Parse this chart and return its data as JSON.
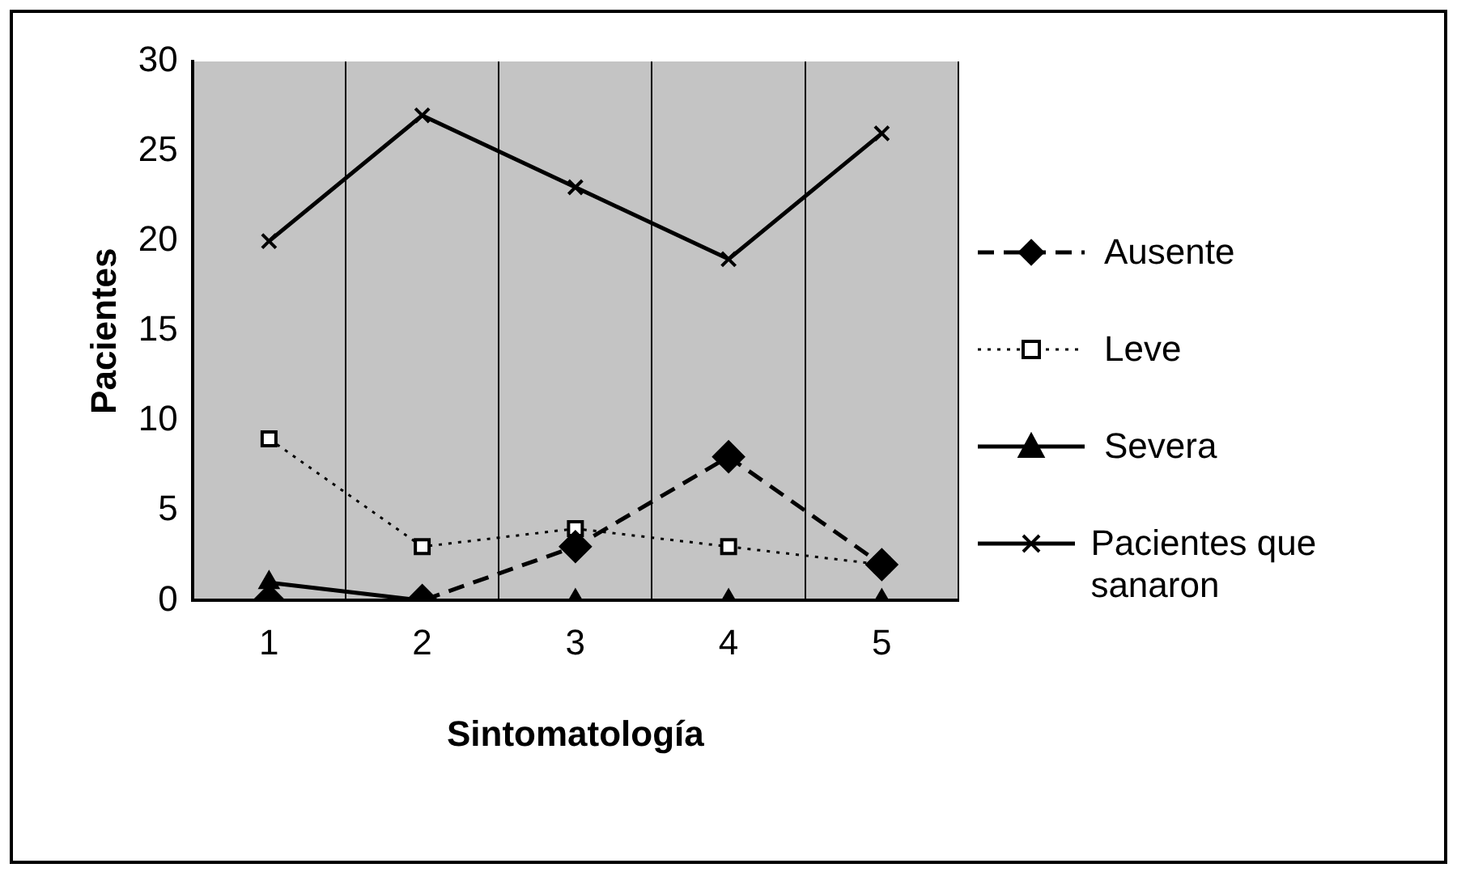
{
  "chart_data": {
    "type": "line",
    "xlabel": "Sintomatología",
    "ylabel": "Pacientes",
    "categories": [
      "1",
      "2",
      "3",
      "4",
      "5"
    ],
    "ylim": [
      0,
      30
    ],
    "yticks": [
      0,
      5,
      10,
      15,
      20,
      25,
      30
    ],
    "grid": "x",
    "legend": "right",
    "series": [
      {
        "name": "Ausente",
        "color": "#000000",
        "values": [
          0,
          0,
          3,
          8,
          2
        ],
        "marker": "diamond",
        "line_style": "dashed"
      },
      {
        "name": "Leve",
        "color": "#000000",
        "values": [
          9,
          3,
          4,
          3,
          2
        ],
        "marker": "square",
        "line_style": "dotted"
      },
      {
        "name": "Severa",
        "color": "#000000",
        "values": [
          1,
          0,
          0,
          0,
          0
        ],
        "marker": "triangle",
        "line_style": "solid"
      },
      {
        "name": "Pacientes que sanaron",
        "color": "#000000",
        "values": [
          20,
          27,
          23,
          19,
          26
        ],
        "marker": "cross",
        "line_style": "solid"
      }
    ]
  }
}
